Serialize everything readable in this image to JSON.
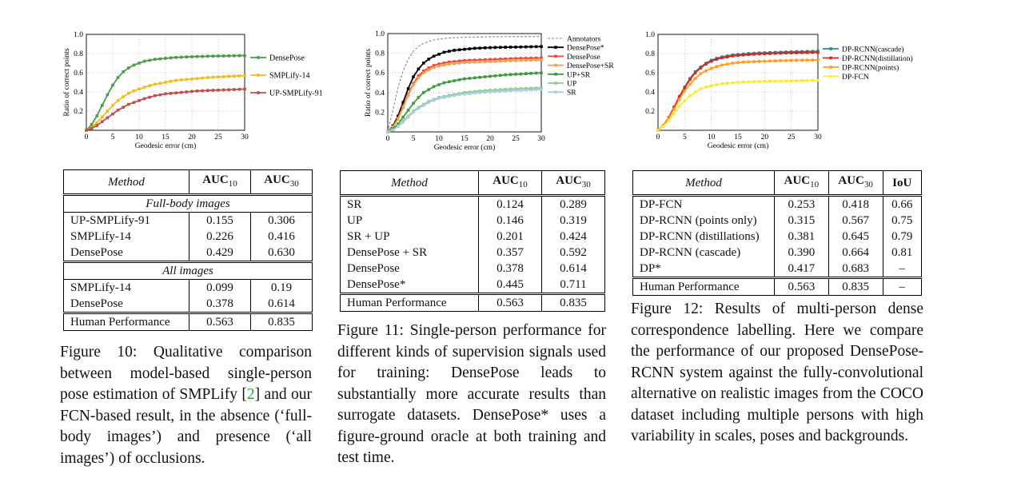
{
  "figures": [
    {
      "id": "fig10",
      "chart_data": {
        "type": "line",
        "xlabel": "Geodesic error (cm)",
        "ylabel": "Ratio of correct points",
        "xlim": [
          0,
          30
        ],
        "ylim": [
          0,
          1.0
        ],
        "xticks": [
          "0",
          "5",
          "10",
          "15",
          "20",
          "25",
          "30"
        ],
        "yticks": [
          "0.2",
          "0.4",
          "0.6",
          "0.8",
          "1.0"
        ],
        "x": [
          0,
          1,
          2,
          3,
          4,
          5,
          6,
          7,
          8,
          9,
          10,
          11,
          12,
          13,
          14,
          15,
          16,
          17,
          18,
          19,
          20,
          21,
          22,
          23,
          24,
          25,
          26,
          27,
          28,
          29,
          30
        ],
        "series": [
          {
            "name": "DensePose",
            "color": "#4c9a4c",
            "values": [
              0,
              0.06,
              0.15,
              0.26,
              0.37,
              0.47,
              0.55,
              0.61,
              0.65,
              0.68,
              0.7,
              0.72,
              0.73,
              0.74,
              0.745,
              0.75,
              0.755,
              0.76,
              0.762,
              0.765,
              0.767,
              0.769,
              0.77,
              0.772,
              0.773,
              0.774,
              0.775,
              0.776,
              0.777,
              0.778,
              0.779
            ]
          },
          {
            "name": "SMPLify-14",
            "color": "#f2bb1f",
            "values": [
              0,
              0.03,
              0.08,
              0.14,
              0.2,
              0.26,
              0.31,
              0.35,
              0.385,
              0.41,
              0.43,
              0.45,
              0.465,
              0.48,
              0.49,
              0.5,
              0.51,
              0.52,
              0.525,
              0.53,
              0.535,
              0.54,
              0.545,
              0.55,
              0.553,
              0.556,
              0.559,
              0.562,
              0.565,
              0.567,
              0.57
            ]
          },
          {
            "name": "UP-SMPLify-91",
            "color": "#c0504d",
            "values": [
              0,
              0.02,
              0.05,
              0.09,
              0.13,
              0.17,
              0.21,
              0.24,
              0.27,
              0.29,
              0.31,
              0.33,
              0.345,
              0.36,
              0.37,
              0.38,
              0.385,
              0.39,
              0.395,
              0.4,
              0.405,
              0.41,
              0.412,
              0.415,
              0.417,
              0.419,
              0.421,
              0.423,
              0.425,
              0.427,
              0.43
            ]
          }
        ]
      },
      "table": {
        "headers": [
          "Method",
          "AUC",
          "10",
          "AUC",
          "30"
        ],
        "sections": [
          {
            "title": "Full-body images",
            "rows": [
              [
                "UP-SMPLify-91",
                "0.155",
                "0.306"
              ],
              [
                "SMPLify-14",
                "0.226",
                "0.416"
              ],
              [
                "DensePose",
                "0.429",
                "0.630"
              ]
            ]
          },
          {
            "title": "All images",
            "rows": [
              [
                "SMPLify-14",
                "0.099",
                "0.19"
              ],
              [
                "DensePose",
                "0.378",
                "0.614"
              ]
            ]
          }
        ],
        "footer": [
          "Human Performance",
          "0.563",
          "0.835"
        ]
      },
      "caption": {
        "pre": "Figure 10: Qualitative comparison between model-based single-person pose estimation of SMPLify [",
        "cite": "2",
        "post": "] and our FCN-based result, in the absence (‘full-body images’) and presence (‘all images’) of occlusions."
      }
    },
    {
      "id": "fig11",
      "chart_data": {
        "type": "line",
        "xlabel": "Geodesic error (cm)",
        "ylabel": "Ratio of correct points",
        "xlim": [
          0,
          30
        ],
        "ylim": [
          0,
          1.0
        ],
        "xticks": [
          "0",
          "5",
          "10",
          "15",
          "20",
          "25",
          "30"
        ],
        "yticks": [
          "0.2",
          "0.4",
          "0.6",
          "0.8",
          "1.0"
        ],
        "x": [
          0,
          1,
          2,
          3,
          4,
          5,
          6,
          7,
          8,
          9,
          10,
          11,
          12,
          13,
          14,
          15,
          16,
          17,
          18,
          19,
          20,
          21,
          22,
          23,
          24,
          25,
          26,
          27,
          28,
          29,
          30
        ],
        "series": [
          {
            "name": "Annotators",
            "color": "#888888",
            "dashed": true,
            "values": [
              0,
              0.22,
              0.45,
              0.62,
              0.74,
              0.82,
              0.87,
              0.9,
              0.92,
              0.935,
              0.945,
              0.95,
              0.955,
              0.958,
              0.96,
              0.962,
              0.963,
              0.964,
              0.965,
              0.966,
              0.967,
              0.968,
              0.968,
              0.969,
              0.969,
              0.97,
              0.97,
              0.97,
              0.97,
              0.97,
              0.97
            ]
          },
          {
            "name": "DensePose*",
            "color": "#000000",
            "values": [
              0,
              0.06,
              0.16,
              0.3,
              0.44,
              0.56,
              0.64,
              0.7,
              0.74,
              0.77,
              0.79,
              0.81,
              0.82,
              0.83,
              0.835,
              0.84,
              0.845,
              0.85,
              0.852,
              0.855,
              0.857,
              0.859,
              0.86,
              0.861,
              0.862,
              0.863,
              0.864,
              0.865,
              0.866,
              0.867,
              0.868
            ]
          },
          {
            "name": "DensePose",
            "color": "#e8453c",
            "values": [
              0,
              0.05,
              0.14,
              0.26,
              0.38,
              0.49,
              0.57,
              0.62,
              0.65,
              0.675,
              0.69,
              0.7,
              0.71,
              0.715,
              0.72,
              0.725,
              0.728,
              0.73,
              0.732,
              0.734,
              0.736,
              0.738,
              0.74,
              0.742,
              0.744,
              0.746,
              0.748,
              0.749,
              0.75,
              0.751,
              0.752
            ]
          },
          {
            "name": "DensePose+SR",
            "color": "#f0a050",
            "values": [
              0,
              0.05,
              0.13,
              0.25,
              0.37,
              0.48,
              0.55,
              0.6,
              0.63,
              0.655,
              0.67,
              0.68,
              0.69,
              0.695,
              0.7,
              0.705,
              0.708,
              0.71,
              0.712,
              0.714,
              0.716,
              0.718,
              0.72,
              0.722,
              0.724,
              0.726,
              0.728,
              0.729,
              0.73,
              0.731,
              0.732
            ]
          },
          {
            "name": "UP+SR",
            "color": "#3d9a3d",
            "values": [
              0,
              0.03,
              0.08,
              0.15,
              0.22,
              0.29,
              0.35,
              0.4,
              0.43,
              0.46,
              0.48,
              0.5,
              0.51,
              0.52,
              0.53,
              0.54,
              0.545,
              0.55,
              0.555,
              0.56,
              0.565,
              0.57,
              0.575,
              0.58,
              0.583,
              0.586,
              0.589,
              0.592,
              0.595,
              0.598,
              0.6
            ]
          },
          {
            "name": "UP",
            "color": "#8bc98b",
            "values": [
              0,
              0.02,
              0.06,
              0.11,
              0.16,
              0.21,
              0.25,
              0.28,
              0.31,
              0.33,
              0.35,
              0.36,
              0.37,
              0.38,
              0.39,
              0.4,
              0.405,
              0.41,
              0.415,
              0.42,
              0.423,
              0.426,
              0.429,
              0.432,
              0.435,
              0.437,
              0.439,
              0.441,
              0.443,
              0.445,
              0.447
            ]
          },
          {
            "name": "SR",
            "color": "#a8cfe0",
            "values": [
              0,
              0.02,
              0.055,
              0.1,
              0.15,
              0.2,
              0.24,
              0.27,
              0.3,
              0.32,
              0.34,
              0.35,
              0.36,
              0.37,
              0.38,
              0.385,
              0.39,
              0.395,
              0.4,
              0.405,
              0.408,
              0.411,
              0.414,
              0.417,
              0.42,
              0.422,
              0.424,
              0.426,
              0.428,
              0.43,
              0.432
            ]
          }
        ]
      },
      "table": {
        "headers": [
          "Method",
          "AUC",
          "10",
          "AUC",
          "30"
        ],
        "rows": [
          [
            "SR",
            "0.124",
            "0.289"
          ],
          [
            "UP",
            "0.146",
            "0.319"
          ],
          [
            "SR + UP",
            "0.201",
            "0.424"
          ],
          [
            "DensePose + SR",
            "0.357",
            "0.592"
          ],
          [
            "DensePose",
            "0.378",
            "0.614"
          ],
          [
            "DensePose*",
            "0.445",
            "0.711"
          ]
        ],
        "footer": [
          "Human Performance",
          "0.563",
          "0.835"
        ]
      },
      "caption": "Figure 11: Single-person performance for different kinds of supervision signals used for training: DensePose leads to substantially more accurate results than surrogate datasets. DensePose* uses a figure-ground oracle at both training and test time."
    },
    {
      "id": "fig12",
      "chart_data": {
        "type": "line",
        "xlabel": "Geodesic error (cm)",
        "ylabel": "",
        "xlim": [
          0,
          30
        ],
        "ylim": [
          0,
          1.0
        ],
        "xticks": [
          "0",
          "5",
          "10",
          "15",
          "20",
          "25",
          "30"
        ],
        "yticks": [
          "0.2",
          "0.4",
          "0.6",
          "0.8",
          "1.0"
        ],
        "x": [
          0,
          1,
          2,
          3,
          4,
          5,
          6,
          7,
          8,
          9,
          10,
          11,
          12,
          13,
          14,
          15,
          16,
          17,
          18,
          19,
          20,
          21,
          22,
          23,
          24,
          25,
          26,
          27,
          28,
          29,
          30
        ],
        "series": [
          {
            "name": "DP-RCNN(cascade)",
            "color": "#2a8a8a",
            "values": [
              0,
              0.05,
              0.13,
              0.24,
              0.35,
              0.45,
              0.54,
              0.61,
              0.66,
              0.7,
              0.73,
              0.75,
              0.765,
              0.775,
              0.785,
              0.79,
              0.795,
              0.8,
              0.803,
              0.806,
              0.808,
              0.81,
              0.812,
              0.814,
              0.816,
              0.818,
              0.82,
              0.821,
              0.822,
              0.823,
              0.824
            ]
          },
          {
            "name": "DP-RCNN(distillation)",
            "color": "#d62728",
            "values": [
              0,
              0.05,
              0.13,
              0.24,
              0.35,
              0.44,
              0.53,
              0.6,
              0.65,
              0.69,
              0.72,
              0.74,
              0.755,
              0.765,
              0.775,
              0.78,
              0.785,
              0.79,
              0.793,
              0.796,
              0.798,
              0.8,
              0.802,
              0.804,
              0.806,
              0.807,
              0.808,
              0.809,
              0.81,
              0.811,
              0.812
            ]
          },
          {
            "name": "DP-RCNN(points)",
            "color": "#ff9f1c",
            "values": [
              0,
              0.05,
              0.12,
              0.22,
              0.32,
              0.41,
              0.48,
              0.54,
              0.59,
              0.62,
              0.645,
              0.665,
              0.68,
              0.69,
              0.7,
              0.705,
              0.71,
              0.713,
              0.716,
              0.718,
              0.72,
              0.722,
              0.724,
              0.726,
              0.727,
              0.728,
              0.729,
              0.73,
              0.731,
              0.732,
              0.733
            ]
          },
          {
            "name": "DP-FCN",
            "color": "#f7ea3a",
            "values": [
              0,
              0.04,
              0.1,
              0.17,
              0.25,
              0.31,
              0.36,
              0.4,
              0.43,
              0.45,
              0.465,
              0.475,
              0.485,
              0.49,
              0.495,
              0.5,
              0.503,
              0.505,
              0.507,
              0.509,
              0.51,
              0.511,
              0.512,
              0.513,
              0.514,
              0.515,
              0.516,
              0.517,
              0.518,
              0.519,
              0.52
            ]
          }
        ]
      },
      "table": {
        "headers": [
          "Method",
          "AUC",
          "10",
          "AUC",
          "30",
          "IoU"
        ],
        "rows": [
          [
            "DP-FCN",
            "0.253",
            "0.418",
            "0.66"
          ],
          [
            "DP-RCNN (points only)",
            "0.315",
            "0.567",
            "0.75"
          ],
          [
            "DP-RCNN (distillations)",
            "0.381",
            "0.645",
            "0.79"
          ],
          [
            "DP-RCNN (cascade)",
            "0.390",
            "0.664",
            "0.81"
          ],
          [
            "DP*",
            "0.417",
            "0.683",
            "–"
          ]
        ],
        "footer": [
          "Human Performance",
          "0.563",
          "0.835",
          "–"
        ]
      },
      "caption": "Figure 12: Results of multi-person dense correspondence labelling. Here we compare the performance of our proposed DensePose-RCNN system against the fully-convolutional alternative on realistic images from the COCO dataset including multiple persons with high variability in scales, poses and backgrounds."
    }
  ]
}
